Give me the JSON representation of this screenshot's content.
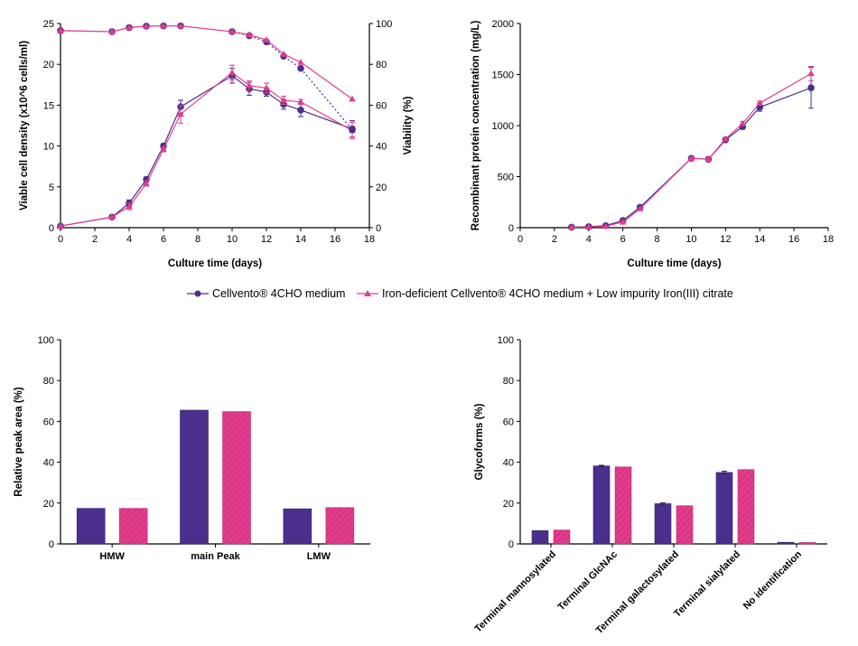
{
  "legend": {
    "items": [
      {
        "label": "Cellvento® 4CHO medium",
        "color": "#4a2f8c",
        "marker": "circle"
      },
      {
        "label": "Iron-deficient Cellvento® 4CHO medium + Low impurity Iron(III) citrate",
        "color": "#e23c8d",
        "marker": "triangle"
      }
    ]
  },
  "chart_data": [
    {
      "type": "line",
      "id": "vcd_viability",
      "xlabel": "Culture time (days)",
      "ylabel": "Viable cell density (x10^6 cells/ml)",
      "y2label": "Viability (%)",
      "xlim": [
        0,
        18
      ],
      "ylim": [
        0,
        25
      ],
      "y2lim": [
        0,
        100
      ],
      "xticks": [
        0,
        2,
        4,
        6,
        8,
        10,
        12,
        14,
        16,
        18
      ],
      "yticks": [
        0,
        5,
        10,
        15,
        20,
        25
      ],
      "y2ticks": [
        0,
        20,
        40,
        60,
        80,
        100
      ],
      "series": [
        {
          "name": "Cellvento® 4CHO medium - VCD",
          "axis": "left",
          "style": "solid",
          "color": "#4a2f8c",
          "marker": "circle",
          "x": [
            0,
            3,
            4,
            5,
            6,
            7,
            10,
            11,
            12,
            13,
            14,
            17
          ],
          "values": [
            0.2,
            1.3,
            3.0,
            5.9,
            10.0,
            14.8,
            18.6,
            17.0,
            16.6,
            15.1,
            14.4,
            12.1
          ],
          "errors": [
            0,
            0.1,
            0.4,
            0.3,
            0.3,
            0.8,
            0.9,
            0.8,
            0.5,
            0.6,
            0.8,
            1.0
          ]
        },
        {
          "name": "Iron-deficient + Low impurity Iron(III) citrate - VCD",
          "axis": "left",
          "style": "solid",
          "color": "#e23c8d",
          "marker": "triangle",
          "x": [
            0,
            3,
            4,
            5,
            6,
            7,
            10,
            11,
            12,
            13,
            14,
            17
          ],
          "values": [
            0.2,
            1.3,
            2.6,
            5.4,
            9.6,
            13.9,
            19.0,
            17.4,
            17.1,
            15.6,
            15.4,
            11.9
          ],
          "errors": [
            0,
            0.1,
            0.4,
            0.3,
            0.3,
            1.1,
            0.9,
            0.6,
            0.6,
            0.5,
            0.3,
            1.0
          ]
        },
        {
          "name": "Cellvento® 4CHO medium - Viability",
          "axis": "right",
          "style": "dotted",
          "color": "#4a2f8c",
          "marker": "circle",
          "x": [
            0,
            3,
            4,
            5,
            6,
            7,
            10,
            11,
            12,
            13,
            14,
            17
          ],
          "values": [
            96.5,
            96,
            98,
            98.7,
            98.8,
            98.8,
            96,
            94,
            91,
            84,
            78,
            48
          ]
        },
        {
          "name": "Iron-deficient + Low impurity Iron(III) citrate - Viability",
          "axis": "right",
          "style": "solid",
          "color": "#e23c8d",
          "marker": "triangle",
          "x": [
            0,
            3,
            4,
            5,
            6,
            7,
            10,
            11,
            12,
            13,
            14,
            17
          ],
          "values": [
            96.5,
            96,
            98,
            98.7,
            98.8,
            98.8,
            96,
            94.5,
            92,
            85,
            81,
            63
          ]
        }
      ]
    },
    {
      "type": "line",
      "id": "protein_concentration",
      "xlabel": "Culture time (days)",
      "ylabel": "Recombinant protein concentration (mg/L)",
      "xlim": [
        0,
        18
      ],
      "ylim": [
        0,
        2000
      ],
      "xticks": [
        0,
        2,
        4,
        6,
        8,
        10,
        12,
        14,
        16,
        18
      ],
      "yticks": [
        0,
        500,
        1000,
        1500,
        2000
      ],
      "series": [
        {
          "name": "Cellvento® 4CHO medium",
          "color": "#4a2f8c",
          "marker": "circle",
          "x": [
            3,
            4,
            5,
            6,
            7,
            10,
            11,
            12,
            13,
            14,
            17
          ],
          "values": [
            5,
            10,
            20,
            70,
            200,
            680,
            670,
            860,
            990,
            1180,
            1370
          ],
          "errors": [
            0,
            0,
            0,
            10,
            10,
            10,
            10,
            15,
            25,
            40,
            200
          ]
        },
        {
          "name": "Iron-deficient + Low impurity Iron(III) citrate",
          "color": "#e23c8d",
          "marker": "triangle",
          "x": [
            3,
            4,
            5,
            6,
            7,
            10,
            11,
            12,
            13,
            14,
            17
          ],
          "values": [
            5,
            8,
            15,
            55,
            185,
            680,
            670,
            870,
            1020,
            1220,
            1510
          ],
          "errors": [
            0,
            0,
            0,
            10,
            10,
            10,
            10,
            15,
            20,
            20,
            70
          ]
        }
      ]
    },
    {
      "type": "bar",
      "id": "peak_area",
      "ylabel": "Relative peak area (%)",
      "ylim": [
        0,
        100
      ],
      "yticks": [
        0,
        20,
        40,
        60,
        80,
        100
      ],
      "categories": [
        "HMW",
        "main Peak",
        "LMW"
      ],
      "series": [
        {
          "name": "Cellvento® 4CHO medium",
          "color": "#4a2f8c",
          "values": [
            17.4,
            65.5,
            17.2
          ]
        },
        {
          "name": "Iron-deficient + Low impurity Iron(III) citrate",
          "color": "#e23c8d",
          "values": [
            17.4,
            64.8,
            17.8
          ]
        }
      ]
    },
    {
      "type": "bar",
      "id": "glycoforms",
      "ylabel": "Glycoforms (%)",
      "ylim": [
        0,
        100
      ],
      "yticks": [
        0,
        20,
        40,
        60,
        80,
        100
      ],
      "categories": [
        "Terminal mannosylated",
        "Terminal GlcNAc",
        "Terminal galactosylated",
        "Terminal sialylated",
        "No identification"
      ],
      "series": [
        {
          "name": "Cellvento® 4CHO medium",
          "color": "#4a2f8c",
          "values": [
            6.5,
            38.2,
            19.7,
            35.0,
            0.8
          ],
          "errors": [
            0.2,
            0.3,
            0.4,
            0.6,
            0.1
          ]
        },
        {
          "name": "Iron-deficient + Low impurity Iron(III) citrate",
          "color": "#e23c8d",
          "values": [
            6.8,
            37.7,
            18.7,
            36.4,
            0.7
          ],
          "errors": [
            0.2,
            0.2,
            0.2,
            0.2,
            0.1
          ]
        }
      ]
    }
  ]
}
